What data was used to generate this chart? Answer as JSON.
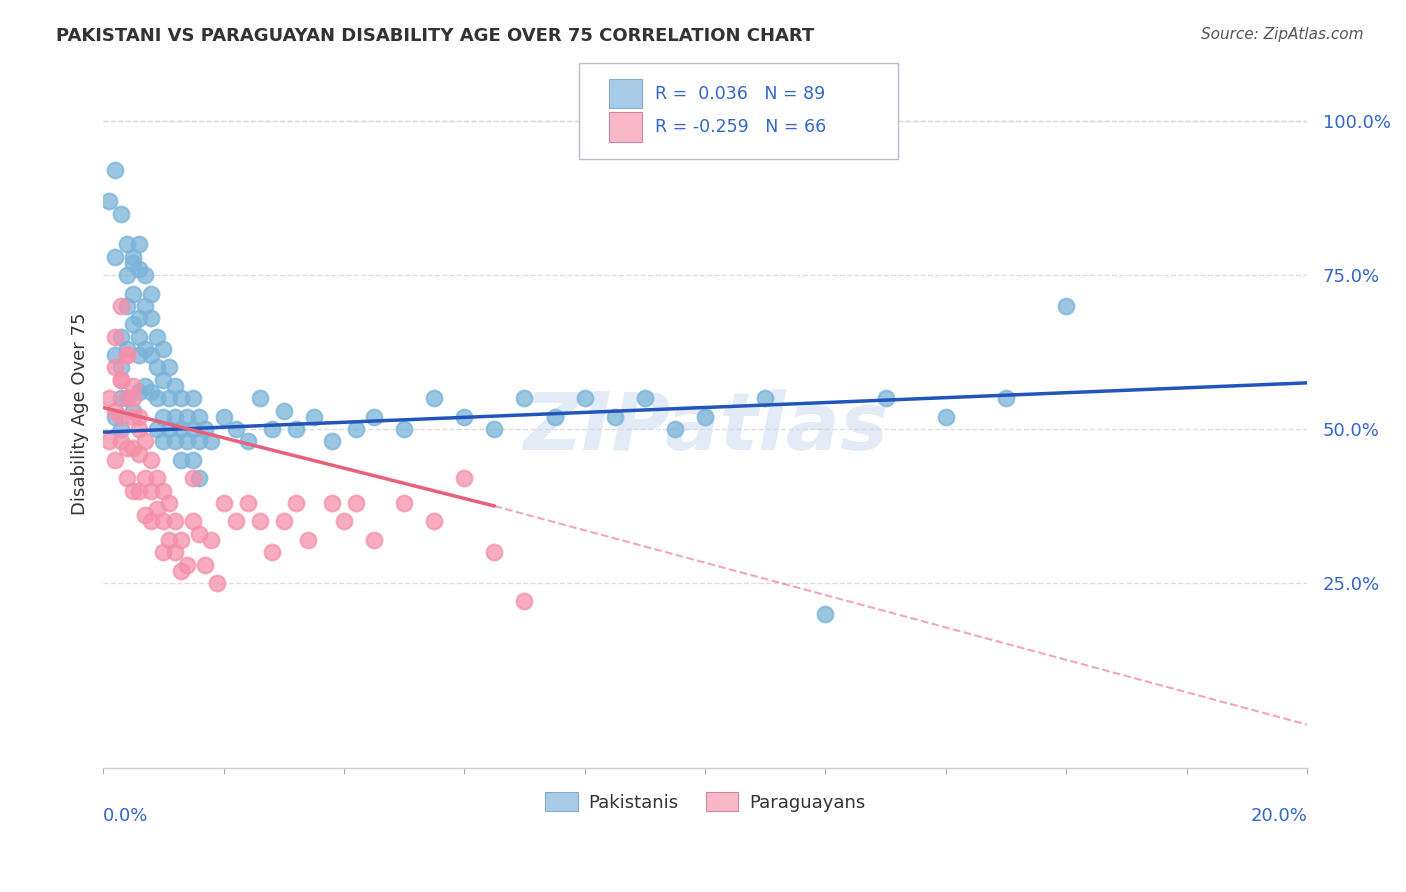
{
  "title": "PAKISTANI VS PARAGUAYAN DISABILITY AGE OVER 75 CORRELATION CHART",
  "source": "Source: ZipAtlas.com",
  "ylabel": "Disability Age Over 75",
  "ytick_labels": [
    "25.0%",
    "50.0%",
    "75.0%",
    "100.0%"
  ],
  "ytick_values": [
    0.25,
    0.5,
    0.75,
    1.0
  ],
  "pakistani_color": "#7ab3d9",
  "paraguayan_color": "#f590aa",
  "pakistani_line_color": "#2255bb",
  "paraguayan_line_color": "#e8607a",
  "legend_pak_color": "#a8cce8",
  "legend_par_color": "#f8b8c8",
  "background_color": "#ffffff",
  "grid_color": "#dddddd",
  "axis_color": "#3366cc",
  "title_color": "#333333",
  "watermark": "ZIPatlas",
  "xlim": [
    0.0,
    0.2
  ],
  "ylim": [
    -0.05,
    1.1
  ],
  "pak_line_x0": 0.0,
  "pak_line_y0": 0.495,
  "pak_line_x1": 0.2,
  "pak_line_y1": 0.575,
  "par_line_x0": 0.0,
  "par_line_y0": 0.535,
  "par_line_x1_solid": 0.065,
  "par_line_y1_solid": 0.375,
  "par_line_x1_dash": 0.2,
  "par_line_y1_dash": 0.02,
  "pakistani_x": [
    0.001,
    0.002,
    0.002,
    0.002,
    0.003,
    0.003,
    0.003,
    0.003,
    0.004,
    0.004,
    0.004,
    0.004,
    0.005,
    0.005,
    0.005,
    0.005,
    0.006,
    0.006,
    0.006,
    0.006,
    0.006,
    0.007,
    0.007,
    0.007,
    0.007,
    0.008,
    0.008,
    0.008,
    0.008,
    0.009,
    0.009,
    0.009,
    0.009,
    0.01,
    0.01,
    0.01,
    0.01,
    0.011,
    0.011,
    0.011,
    0.012,
    0.012,
    0.012,
    0.013,
    0.013,
    0.013,
    0.014,
    0.014,
    0.015,
    0.015,
    0.015,
    0.016,
    0.016,
    0.016,
    0.017,
    0.018,
    0.02,
    0.022,
    0.024,
    0.026,
    0.028,
    0.03,
    0.032,
    0.035,
    0.038,
    0.042,
    0.045,
    0.05,
    0.055,
    0.06,
    0.065,
    0.07,
    0.075,
    0.08,
    0.085,
    0.09,
    0.095,
    0.1,
    0.11,
    0.12,
    0.13,
    0.14,
    0.15,
    0.16,
    0.002,
    0.003,
    0.004,
    0.005,
    0.006
  ],
  "pakistani_y": [
    0.87,
    0.52,
    0.78,
    0.62,
    0.55,
    0.6,
    0.65,
    0.5,
    0.7,
    0.75,
    0.63,
    0.55,
    0.77,
    0.72,
    0.67,
    0.53,
    0.8,
    0.76,
    0.68,
    0.62,
    0.56,
    0.75,
    0.7,
    0.63,
    0.57,
    0.72,
    0.68,
    0.62,
    0.56,
    0.65,
    0.6,
    0.55,
    0.5,
    0.63,
    0.58,
    0.52,
    0.48,
    0.6,
    0.55,
    0.5,
    0.57,
    0.52,
    0.48,
    0.55,
    0.5,
    0.45,
    0.52,
    0.48,
    0.55,
    0.5,
    0.45,
    0.52,
    0.48,
    0.42,
    0.5,
    0.48,
    0.52,
    0.5,
    0.48,
    0.55,
    0.5,
    0.53,
    0.5,
    0.52,
    0.48,
    0.5,
    0.52,
    0.5,
    0.55,
    0.52,
    0.5,
    0.55,
    0.52,
    0.55,
    0.52,
    0.55,
    0.5,
    0.52,
    0.55,
    0.2,
    0.55,
    0.52,
    0.55,
    0.7,
    0.92,
    0.85,
    0.8,
    0.78,
    0.65
  ],
  "paraguayan_x": [
    0.001,
    0.001,
    0.002,
    0.002,
    0.002,
    0.003,
    0.003,
    0.003,
    0.004,
    0.004,
    0.004,
    0.004,
    0.005,
    0.005,
    0.005,
    0.005,
    0.006,
    0.006,
    0.006,
    0.007,
    0.007,
    0.007,
    0.008,
    0.008,
    0.008,
    0.009,
    0.009,
    0.01,
    0.01,
    0.01,
    0.011,
    0.011,
    0.012,
    0.012,
    0.013,
    0.013,
    0.014,
    0.015,
    0.015,
    0.016,
    0.017,
    0.018,
    0.019,
    0.02,
    0.022,
    0.024,
    0.026,
    0.028,
    0.03,
    0.032,
    0.034,
    0.038,
    0.04,
    0.042,
    0.045,
    0.05,
    0.055,
    0.06,
    0.065,
    0.07,
    0.002,
    0.003,
    0.003,
    0.004,
    0.005,
    0.006
  ],
  "paraguayan_y": [
    0.55,
    0.48,
    0.6,
    0.53,
    0.45,
    0.52,
    0.58,
    0.48,
    0.55,
    0.62,
    0.47,
    0.42,
    0.57,
    0.52,
    0.47,
    0.4,
    0.52,
    0.46,
    0.4,
    0.48,
    0.42,
    0.36,
    0.45,
    0.4,
    0.35,
    0.42,
    0.37,
    0.4,
    0.35,
    0.3,
    0.38,
    0.32,
    0.35,
    0.3,
    0.32,
    0.27,
    0.28,
    0.42,
    0.35,
    0.33,
    0.28,
    0.32,
    0.25,
    0.38,
    0.35,
    0.38,
    0.35,
    0.3,
    0.35,
    0.38,
    0.32,
    0.38,
    0.35,
    0.38,
    0.32,
    0.38,
    0.35,
    0.42,
    0.3,
    0.22,
    0.65,
    0.58,
    0.7,
    0.62,
    0.55,
    0.5
  ]
}
